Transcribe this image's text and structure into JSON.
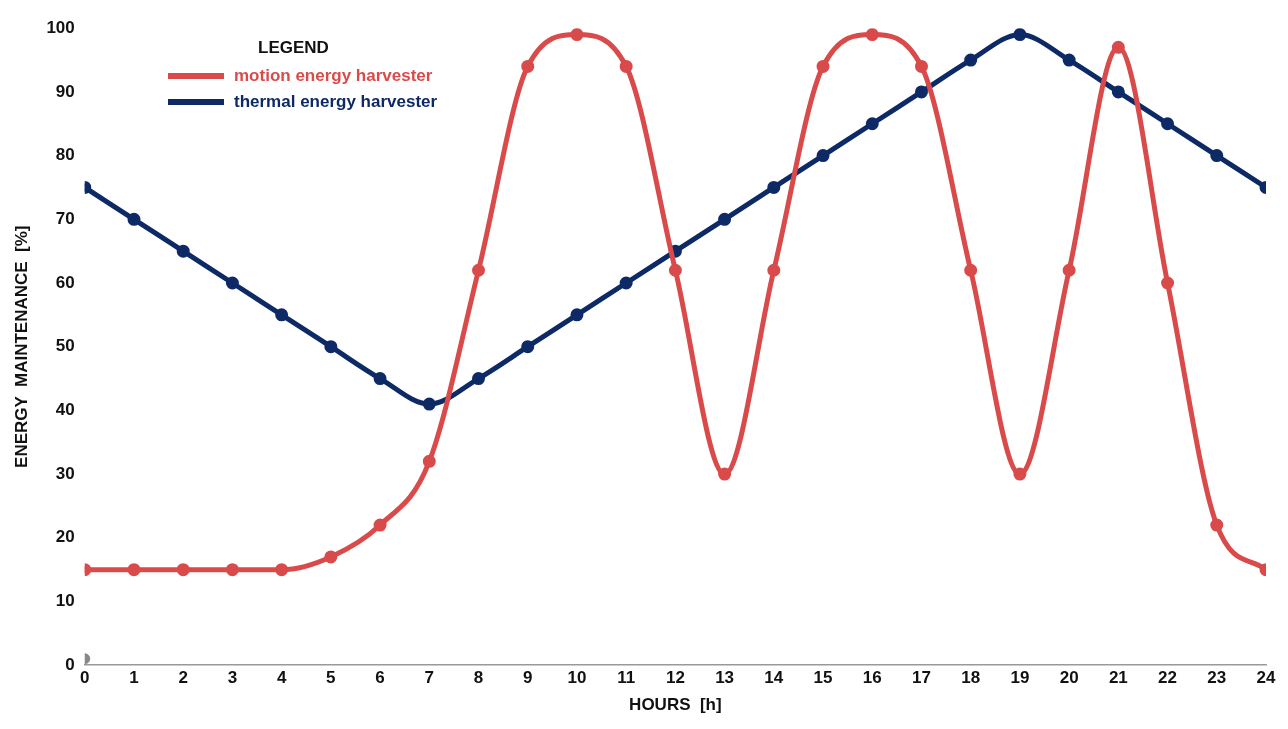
{
  "chart_data": {
    "type": "line",
    "xlabel": "HOURS  [h]",
    "ylabel": "ENERGY  MAINTENANCE  [%]",
    "legend_title": "LEGEND",
    "x": [
      0,
      1,
      2,
      3,
      4,
      5,
      6,
      7,
      8,
      9,
      10,
      11,
      12,
      13,
      14,
      15,
      16,
      17,
      18,
      19,
      20,
      21,
      22,
      23,
      24
    ],
    "xlim": [
      0,
      24
    ],
    "xticks": [
      0,
      1,
      2,
      3,
      4,
      5,
      6,
      7,
      8,
      9,
      10,
      11,
      12,
      13,
      14,
      15,
      16,
      17,
      18,
      19,
      20,
      21,
      22,
      23,
      24
    ],
    "ylim": [
      0,
      100
    ],
    "yticks": [
      0,
      10,
      20,
      30,
      40,
      50,
      60,
      70,
      80,
      90,
      100
    ],
    "grid": false,
    "legend": "top left",
    "marker": "circle",
    "line_style": "solid",
    "series": [
      {
        "name": "motion energy harvester",
        "color": "#d94b4b",
        "values": [
          15,
          15,
          15,
          15,
          15,
          17,
          22,
          32,
          62,
          94,
          99,
          94,
          62,
          30,
          62,
          94,
          99,
          94,
          62,
          30,
          62,
          97,
          60,
          22,
          15
        ]
      },
      {
        "name": "thermal energy harvester",
        "color": "#0d2a66",
        "values": [
          75,
          70,
          65,
          60,
          55,
          50,
          45,
          41,
          45,
          50,
          55,
          60,
          65,
          70,
          75,
          80,
          85,
          90,
          95,
          99,
          95,
          90,
          85,
          80,
          75
        ]
      },
      {
        "type": "scatter",
        "color": "#888888",
        "x": [
          0
        ],
        "values": [
          1
        ]
      }
    ]
  }
}
